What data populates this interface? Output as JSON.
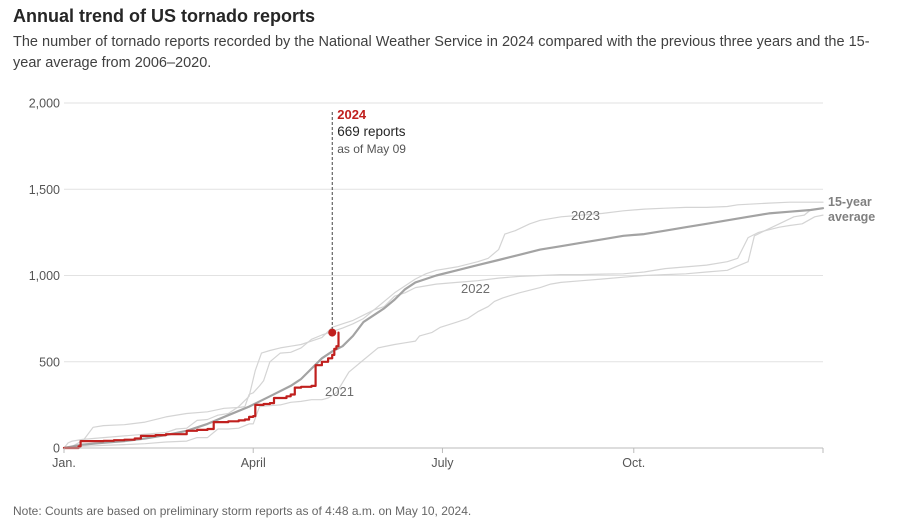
{
  "header": {
    "title": "Annual trend of US tornado reports",
    "subtitle": "The number of tornado reports recorded by the National Weather Service in 2024 compared with the previous three years and the 15-year average from 2006–2020."
  },
  "footer": {
    "note": "Note: Counts are based on preliminary storm reports as of 4:48 a.m. on May 10, 2024."
  },
  "colors": {
    "highlight": "#c0201e",
    "average": "#a3a3a3",
    "past_years": "#d4d4d4",
    "grid": "#e2e2e2",
    "axis": "#bbbbbb"
  },
  "chart_data": {
    "type": "line",
    "x_unit": "day of year",
    "xlim": [
      1,
      366
    ],
    "ylim": [
      0,
      2000
    ],
    "y_ticks": [
      {
        "value": 0,
        "label": "0"
      },
      {
        "value": 500,
        "label": "500"
      },
      {
        "value": 1000,
        "label": "1,000"
      },
      {
        "value": 1500,
        "label": "1,500"
      },
      {
        "value": 2000,
        "label": "2,000"
      }
    ],
    "x_ticks": [
      {
        "value": 1,
        "label": "Jan."
      },
      {
        "value": 92,
        "label": "April"
      },
      {
        "value": 183,
        "label": "July"
      },
      {
        "value": 275,
        "label": "Oct."
      }
    ],
    "series": [
      {
        "name": "2021",
        "label": "2021",
        "style": "past",
        "points": [
          [
            1,
            0
          ],
          [
            10,
            10
          ],
          [
            20,
            15
          ],
          [
            30,
            20
          ],
          [
            40,
            25
          ],
          [
            50,
            35
          ],
          [
            60,
            40
          ],
          [
            65,
            60
          ],
          [
            70,
            60
          ],
          [
            75,
            110
          ],
          [
            80,
            110
          ],
          [
            85,
            115
          ],
          [
            90,
            140
          ],
          [
            92,
            140
          ],
          [
            95,
            240
          ],
          [
            100,
            245
          ],
          [
            105,
            250
          ],
          [
            110,
            265
          ],
          [
            115,
            270
          ],
          [
            120,
            280
          ],
          [
            125,
            280
          ],
          [
            128,
            290
          ],
          [
            132,
            320
          ],
          [
            138,
            440
          ],
          [
            145,
            510
          ],
          [
            152,
            580
          ],
          [
            160,
            600
          ],
          [
            165,
            610
          ],
          [
            170,
            620
          ],
          [
            172,
            650
          ],
          [
            178,
            670
          ],
          [
            182,
            700
          ],
          [
            190,
            730
          ],
          [
            195,
            750
          ],
          [
            200,
            790
          ],
          [
            205,
            820
          ],
          [
            208,
            850
          ],
          [
            212,
            870
          ],
          [
            220,
            900
          ],
          [
            230,
            930
          ],
          [
            235,
            950
          ],
          [
            240,
            960
          ],
          [
            250,
            970
          ],
          [
            260,
            980
          ],
          [
            270,
            990
          ],
          [
            280,
            1000
          ],
          [
            290,
            1005
          ],
          [
            300,
            1010
          ],
          [
            310,
            1020
          ],
          [
            320,
            1030
          ],
          [
            330,
            1080
          ],
          [
            333,
            1230
          ],
          [
            338,
            1260
          ],
          [
            345,
            1300
          ],
          [
            352,
            1340
          ],
          [
            357,
            1350
          ],
          [
            360,
            1380
          ],
          [
            366,
            1390
          ]
        ]
      },
      {
        "name": "2022",
        "label": "2022",
        "style": "past",
        "points": [
          [
            1,
            0
          ],
          [
            5,
            10
          ],
          [
            8,
            30
          ],
          [
            10,
            40
          ],
          [
            15,
            120
          ],
          [
            20,
            130
          ],
          [
            30,
            135
          ],
          [
            40,
            150
          ],
          [
            50,
            180
          ],
          [
            60,
            200
          ],
          [
            70,
            210
          ],
          [
            78,
            230
          ],
          [
            85,
            235
          ],
          [
            88,
            240
          ],
          [
            90,
            310
          ],
          [
            92,
            320
          ],
          [
            95,
            360
          ],
          [
            97,
            390
          ],
          [
            100,
            500
          ],
          [
            105,
            550
          ],
          [
            110,
            555
          ],
          [
            115,
            580
          ],
          [
            120,
            630
          ],
          [
            125,
            655
          ],
          [
            130,
            675
          ],
          [
            135,
            695
          ],
          [
            140,
            720
          ],
          [
            145,
            750
          ],
          [
            150,
            800
          ],
          [
            155,
            820
          ],
          [
            160,
            880
          ],
          [
            165,
            900
          ],
          [
            170,
            930
          ],
          [
            175,
            940
          ],
          [
            180,
            950
          ],
          [
            190,
            960
          ],
          [
            200,
            970
          ],
          [
            210,
            985
          ],
          [
            220,
            995
          ],
          [
            230,
            1000
          ],
          [
            240,
            1005
          ],
          [
            250,
            1005
          ],
          [
            260,
            1008
          ],
          [
            270,
            1010
          ],
          [
            280,
            1020
          ],
          [
            290,
            1040
          ],
          [
            300,
            1050
          ],
          [
            310,
            1060
          ],
          [
            320,
            1080
          ],
          [
            325,
            1100
          ],
          [
            330,
            1220
          ],
          [
            335,
            1250
          ],
          [
            345,
            1280
          ],
          [
            350,
            1290
          ],
          [
            356,
            1300
          ],
          [
            362,
            1340
          ],
          [
            366,
            1350
          ]
        ]
      },
      {
        "name": "2023",
        "label": "2023",
        "style": "past",
        "points": [
          [
            1,
            0
          ],
          [
            3,
            30
          ],
          [
            5,
            40
          ],
          [
            10,
            50
          ],
          [
            20,
            60
          ],
          [
            30,
            70
          ],
          [
            40,
            80
          ],
          [
            45,
            85
          ],
          [
            50,
            90
          ],
          [
            55,
            110
          ],
          [
            60,
            115
          ],
          [
            65,
            160
          ],
          [
            70,
            165
          ],
          [
            75,
            190
          ],
          [
            80,
            200
          ],
          [
            85,
            240
          ],
          [
            90,
            300
          ],
          [
            93,
            450
          ],
          [
            96,
            550
          ],
          [
            100,
            565
          ],
          [
            105,
            580
          ],
          [
            110,
            590
          ],
          [
            115,
            600
          ],
          [
            120,
            620
          ],
          [
            125,
            640
          ],
          [
            130,
            700
          ],
          [
            135,
            720
          ],
          [
            140,
            740
          ],
          [
            145,
            770
          ],
          [
            150,
            800
          ],
          [
            155,
            850
          ],
          [
            160,
            900
          ],
          [
            165,
            940
          ],
          [
            170,
            980
          ],
          [
            175,
            1010
          ],
          [
            180,
            1030
          ],
          [
            185,
            1040
          ],
          [
            190,
            1050
          ],
          [
            200,
            1080
          ],
          [
            205,
            1100
          ],
          [
            210,
            1150
          ],
          [
            213,
            1240
          ],
          [
            218,
            1260
          ],
          [
            225,
            1300
          ],
          [
            230,
            1320
          ],
          [
            240,
            1340
          ],
          [
            250,
            1350
          ],
          [
            260,
            1360
          ],
          [
            270,
            1375
          ],
          [
            280,
            1385
          ],
          [
            290,
            1390
          ],
          [
            300,
            1395
          ],
          [
            310,
            1395
          ],
          [
            320,
            1400
          ],
          [
            325,
            1410
          ],
          [
            340,
            1420
          ],
          [
            350,
            1425
          ],
          [
            366,
            1425
          ]
        ]
      },
      {
        "name": "15-year average",
        "label": "15-year average",
        "label_lines": [
          "15-year",
          "average"
        ],
        "style": "average",
        "points": [
          [
            1,
            0
          ],
          [
            10,
            20
          ],
          [
            20,
            30
          ],
          [
            30,
            40
          ],
          [
            40,
            55
          ],
          [
            50,
            75
          ],
          [
            60,
            100
          ],
          [
            70,
            140
          ],
          [
            80,
            190
          ],
          [
            90,
            240
          ],
          [
            100,
            300
          ],
          [
            110,
            360
          ],
          [
            115,
            400
          ],
          [
            120,
            460
          ],
          [
            125,
            520
          ],
          [
            130,
            560
          ],
          [
            135,
            590
          ],
          [
            140,
            650
          ],
          [
            145,
            730
          ],
          [
            150,
            770
          ],
          [
            155,
            810
          ],
          [
            160,
            860
          ],
          [
            165,
            920
          ],
          [
            170,
            960
          ],
          [
            175,
            980
          ],
          [
            180,
            1000
          ],
          [
            190,
            1030
          ],
          [
            200,
            1060
          ],
          [
            210,
            1090
          ],
          [
            220,
            1120
          ],
          [
            230,
            1150
          ],
          [
            240,
            1170
          ],
          [
            250,
            1190
          ],
          [
            260,
            1210
          ],
          [
            270,
            1230
          ],
          [
            280,
            1240
          ],
          [
            290,
            1260
          ],
          [
            300,
            1280
          ],
          [
            310,
            1300
          ],
          [
            320,
            1320
          ],
          [
            330,
            1340
          ],
          [
            340,
            1360
          ],
          [
            350,
            1370
          ],
          [
            360,
            1380
          ],
          [
            366,
            1390
          ]
        ]
      },
      {
        "name": "2024",
        "label": "2024",
        "style": "highlight",
        "step": true,
        "points": [
          [
            1,
            0
          ],
          [
            8,
            10
          ],
          [
            9,
            40
          ],
          [
            15,
            40
          ],
          [
            20,
            42
          ],
          [
            25,
            45
          ],
          [
            30,
            48
          ],
          [
            35,
            55
          ],
          [
            38,
            70
          ],
          [
            45,
            75
          ],
          [
            50,
            80
          ],
          [
            58,
            80
          ],
          [
            60,
            100
          ],
          [
            65,
            105
          ],
          [
            70,
            110
          ],
          [
            73,
            150
          ],
          [
            80,
            155
          ],
          [
            85,
            160
          ],
          [
            88,
            165
          ],
          [
            90,
            180
          ],
          [
            92,
            185
          ],
          [
            93,
            250
          ],
          [
            97,
            255
          ],
          [
            100,
            260
          ],
          [
            102,
            290
          ],
          [
            108,
            300
          ],
          [
            110,
            310
          ],
          [
            112,
            350
          ],
          [
            115,
            355
          ],
          [
            120,
            360
          ],
          [
            122,
            480
          ],
          [
            125,
            500
          ],
          [
            128,
            520
          ],
          [
            130,
            540
          ],
          [
            131,
            575
          ],
          [
            132,
            590
          ],
          [
            133,
            669
          ]
        ]
      }
    ],
    "annotation": {
      "series": "2024",
      "x": 130,
      "value": 669,
      "title": "2024",
      "value_label": "669 reports",
      "date_label": "as of May 09"
    }
  }
}
